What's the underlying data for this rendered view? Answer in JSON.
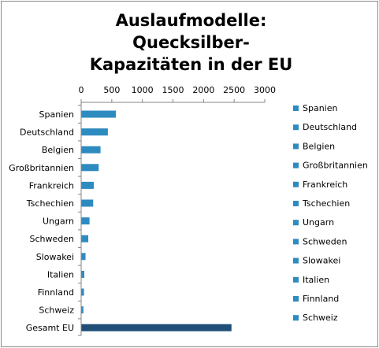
{
  "chart_data": {
    "type": "bar",
    "orientation": "horizontal",
    "title_line1": "Auslaufmodelle: Quecksilber-",
    "title_line2": "Kapazitäten in der EU",
    "xlim": [
      0,
      3000
    ],
    "ticks": [
      "0",
      "500",
      "1000",
      "1500",
      "2000",
      "2500",
      "3000"
    ],
    "tick_values": [
      0,
      500,
      1000,
      1500,
      2000,
      2500,
      3000
    ],
    "x_axis_position": "top",
    "grid": false,
    "legend_position": "right",
    "categories": [
      "Spanien",
      "Deutschland",
      "Belgien",
      "Großbritannien",
      "Frankreich",
      "Tschechien",
      "Ungarn",
      "Schweden",
      "Slowakei",
      "Italien",
      "Finnland",
      "Schweiz",
      "Gesamt EU"
    ],
    "values": [
      560,
      430,
      310,
      280,
      200,
      190,
      130,
      110,
      65,
      45,
      40,
      30,
      2450
    ],
    "legend": [
      "Spanien",
      "Deutschland",
      "Belgien",
      "Großbritannien",
      "Frankreich",
      "Tschechien",
      "Ungarn",
      "Schweden",
      "Slowakei",
      "Italien",
      "Finnland",
      "Schweiz"
    ],
    "colors": {
      "bar": "#2e8bc0",
      "total_bar": "#1f4e79",
      "axis": "#868686",
      "text": "#000000"
    }
  }
}
